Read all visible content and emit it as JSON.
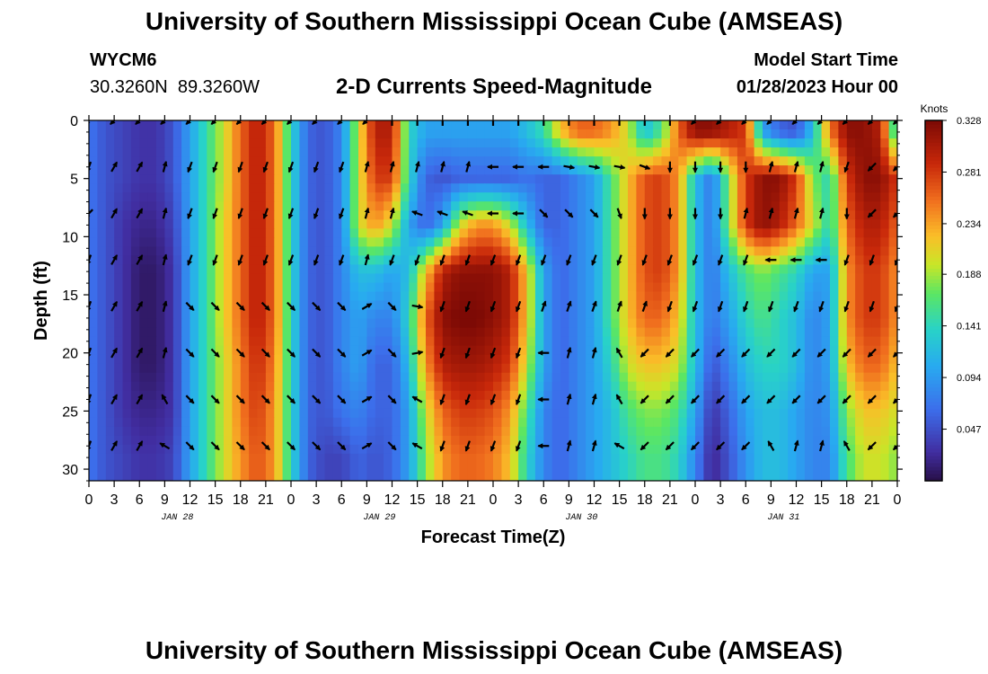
{
  "header": {
    "title": "University of Southern Mississippi Ocean Cube (AMSEAS)",
    "station": "WYCM6",
    "lat": "30.3260N",
    "lon": "89.3260W",
    "model_start_label": "Model Start Time",
    "model_start_value": "01/28/2023 Hour 00"
  },
  "footer": {
    "title": "University of Southern Mississippi Ocean Cube (AMSEAS)"
  },
  "chart_data": {
    "type": "heatmap",
    "title": "2-D Currents Speed-Magnitude",
    "xlabel": "Forecast Time(Z)",
    "ylabel": "Depth (ft)",
    "x_hours": [
      0,
      96
    ],
    "x_tick_step_hours": 3,
    "x_tick_labels": [
      "0",
      "3",
      "6",
      "9",
      "12",
      "15",
      "18",
      "21",
      "0",
      "3",
      "6",
      "9",
      "12",
      "15",
      "18",
      "21",
      "0",
      "3",
      "6",
      "9",
      "12",
      "15",
      "18",
      "21",
      "0",
      "3",
      "6",
      "9",
      "12",
      "15",
      "18",
      "21",
      "0"
    ],
    "date_labels": [
      {
        "hour": 10.5,
        "text": "JAN 28"
      },
      {
        "hour": 34.5,
        "text": "JAN 29"
      },
      {
        "hour": 58.5,
        "text": "JAN 30"
      },
      {
        "hour": 82.5,
        "text": "JAN 31"
      }
    ],
    "y_range_ft": [
      0,
      31
    ],
    "y_ticks": [
      0,
      5,
      10,
      15,
      20,
      25,
      30
    ],
    "colorbar": {
      "unit": "Knots",
      "min": 0.0,
      "max": 0.328,
      "tick_values": [
        0.047,
        0.094,
        0.141,
        0.188,
        0.234,
        0.281,
        0.328
      ],
      "tick_labels": [
        "0.047",
        "0.094",
        "0.141",
        "0.188",
        "0.234",
        "0.281",
        "0.328"
      ]
    },
    "speed_knots_by_layer": {
      "depths_ft": [
        1,
        5,
        9,
        13,
        17,
        21,
        25,
        29
      ],
      "hours": [
        0,
        2,
        4,
        6,
        8,
        10,
        12,
        14,
        16,
        18,
        20,
        22,
        24,
        26,
        28,
        30,
        32,
        34,
        36,
        38,
        40,
        42,
        44,
        46,
        48,
        50,
        52,
        54,
        56,
        58,
        60,
        62,
        64,
        66,
        68,
        70,
        72,
        74,
        76,
        78,
        80,
        82,
        84,
        86,
        88,
        90,
        92,
        94,
        96
      ],
      "values": [
        [
          0.07,
          0.05,
          0.04,
          0.03,
          0.03,
          0.05,
          0.1,
          0.15,
          0.2,
          0.26,
          0.3,
          0.26,
          0.14,
          0.06,
          0.05,
          0.08,
          0.2,
          0.3,
          0.3,
          0.14,
          0.1,
          0.1,
          0.1,
          0.1,
          0.1,
          0.1,
          0.12,
          0.15,
          0.22,
          0.26,
          0.26,
          0.24,
          0.2,
          0.12,
          0.16,
          0.26,
          0.32,
          0.32,
          0.3,
          0.28,
          0.1,
          0.06,
          0.05,
          0.12,
          0.25,
          0.32,
          0.32,
          0.3,
          0.12
        ],
        [
          0.07,
          0.05,
          0.04,
          0.03,
          0.03,
          0.05,
          0.1,
          0.15,
          0.2,
          0.26,
          0.3,
          0.26,
          0.14,
          0.06,
          0.05,
          0.08,
          0.2,
          0.28,
          0.28,
          0.14,
          0.06,
          0.05,
          0.06,
          0.06,
          0.06,
          0.06,
          0.07,
          0.06,
          0.06,
          0.08,
          0.1,
          0.16,
          0.22,
          0.27,
          0.28,
          0.24,
          0.12,
          0.07,
          0.18,
          0.28,
          0.32,
          0.32,
          0.28,
          0.18,
          0.14,
          0.28,
          0.32,
          0.32,
          0.28
        ],
        [
          0.07,
          0.05,
          0.03,
          0.02,
          0.02,
          0.04,
          0.1,
          0.15,
          0.21,
          0.26,
          0.3,
          0.26,
          0.14,
          0.06,
          0.05,
          0.08,
          0.2,
          0.24,
          0.2,
          0.1,
          0.06,
          0.1,
          0.2,
          0.24,
          0.24,
          0.2,
          0.12,
          0.06,
          0.06,
          0.08,
          0.1,
          0.16,
          0.22,
          0.27,
          0.28,
          0.24,
          0.12,
          0.07,
          0.18,
          0.28,
          0.32,
          0.3,
          0.26,
          0.2,
          0.14,
          0.26,
          0.3,
          0.3,
          0.26
        ],
        [
          0.07,
          0.05,
          0.03,
          0.01,
          0.01,
          0.03,
          0.1,
          0.15,
          0.21,
          0.26,
          0.3,
          0.26,
          0.14,
          0.06,
          0.05,
          0.08,
          0.12,
          0.12,
          0.1,
          0.12,
          0.22,
          0.3,
          0.32,
          0.32,
          0.32,
          0.3,
          0.22,
          0.1,
          0.06,
          0.08,
          0.1,
          0.16,
          0.22,
          0.27,
          0.28,
          0.24,
          0.12,
          0.07,
          0.12,
          0.16,
          0.18,
          0.16,
          0.14,
          0.1,
          0.1,
          0.24,
          0.28,
          0.28,
          0.24
        ],
        [
          0.07,
          0.05,
          0.03,
          0.01,
          0.01,
          0.03,
          0.1,
          0.15,
          0.21,
          0.26,
          0.3,
          0.26,
          0.14,
          0.06,
          0.05,
          0.08,
          0.1,
          0.08,
          0.08,
          0.14,
          0.26,
          0.32,
          0.33,
          0.33,
          0.32,
          0.3,
          0.22,
          0.1,
          0.06,
          0.08,
          0.1,
          0.16,
          0.22,
          0.26,
          0.26,
          0.22,
          0.12,
          0.07,
          0.1,
          0.14,
          0.16,
          0.14,
          0.12,
          0.08,
          0.1,
          0.24,
          0.28,
          0.28,
          0.24
        ],
        [
          0.07,
          0.05,
          0.03,
          0.01,
          0.01,
          0.03,
          0.1,
          0.15,
          0.2,
          0.25,
          0.29,
          0.25,
          0.14,
          0.06,
          0.05,
          0.08,
          0.1,
          0.06,
          0.06,
          0.12,
          0.24,
          0.3,
          0.31,
          0.31,
          0.3,
          0.28,
          0.2,
          0.1,
          0.06,
          0.08,
          0.1,
          0.14,
          0.2,
          0.22,
          0.22,
          0.2,
          0.12,
          0.05,
          0.08,
          0.12,
          0.14,
          0.14,
          0.12,
          0.08,
          0.1,
          0.22,
          0.26,
          0.26,
          0.22
        ],
        [
          0.07,
          0.05,
          0.03,
          0.02,
          0.02,
          0.03,
          0.1,
          0.15,
          0.2,
          0.25,
          0.28,
          0.24,
          0.14,
          0.06,
          0.05,
          0.07,
          0.08,
          0.06,
          0.06,
          0.1,
          0.2,
          0.26,
          0.28,
          0.28,
          0.27,
          0.24,
          0.16,
          0.08,
          0.06,
          0.08,
          0.1,
          0.12,
          0.16,
          0.18,
          0.18,
          0.16,
          0.1,
          0.03,
          0.06,
          0.1,
          0.12,
          0.12,
          0.1,
          0.08,
          0.09,
          0.18,
          0.22,
          0.22,
          0.2
        ],
        [
          0.07,
          0.05,
          0.04,
          0.03,
          0.03,
          0.04,
          0.1,
          0.15,
          0.2,
          0.24,
          0.27,
          0.24,
          0.14,
          0.06,
          0.04,
          0.04,
          0.06,
          0.05,
          0.06,
          0.1,
          0.18,
          0.24,
          0.26,
          0.26,
          0.25,
          0.22,
          0.14,
          0.08,
          0.06,
          0.08,
          0.1,
          0.12,
          0.14,
          0.16,
          0.16,
          0.14,
          0.08,
          0.02,
          0.05,
          0.09,
          0.12,
          0.12,
          0.1,
          0.08,
          0.08,
          0.16,
          0.2,
          0.2,
          0.18
        ]
      ]
    },
    "vector_hours": [
      0,
      3,
      6,
      9,
      12,
      15,
      18,
      21,
      24,
      27,
      30,
      33,
      36,
      39,
      42,
      45,
      48,
      51,
      54,
      57,
      60,
      63,
      66,
      69,
      72,
      75,
      78,
      81,
      84,
      87,
      90,
      93,
      96
    ],
    "vectors_by_depth": {
      "depths_ft": [
        0,
        4,
        8,
        12,
        16,
        20,
        24,
        28
      ],
      "direction_deg": [
        [
          225,
          225,
          225,
          225,
          225,
          225,
          225,
          225,
          225,
          225,
          225,
          225,
          0,
          0,
          0,
          0,
          0,
          0,
          0,
          0,
          0,
          0,
          0,
          0,
          225,
          225,
          225,
          225,
          225,
          225,
          225,
          225,
          225
        ],
        [
          200,
          30,
          30,
          15,
          200,
          200,
          200,
          200,
          200,
          200,
          200,
          15,
          15,
          15,
          15,
          15,
          270,
          270,
          270,
          100,
          100,
          100,
          110,
          180,
          180,
          180,
          180,
          15,
          15,
          15,
          200,
          225,
          225
        ],
        [
          225,
          30,
          30,
          15,
          200,
          200,
          200,
          200,
          200,
          200,
          200,
          15,
          15,
          290,
          290,
          290,
          270,
          270,
          135,
          135,
          135,
          160,
          180,
          180,
          180,
          180,
          15,
          15,
          15,
          15,
          180,
          225,
          225
        ],
        [
          200,
          30,
          30,
          15,
          200,
          200,
          200,
          200,
          200,
          200,
          200,
          15,
          200,
          200,
          200,
          200,
          200,
          200,
          200,
          200,
          200,
          200,
          200,
          200,
          200,
          200,
          200,
          270,
          270,
          270,
          200,
          200,
          200
        ],
        [
          200,
          30,
          30,
          15,
          135,
          135,
          135,
          135,
          135,
          135,
          135,
          60,
          135,
          100,
          200,
          200,
          200,
          200,
          20,
          20,
          20,
          20,
          20,
          200,
          200,
          200,
          200,
          200,
          200,
          200,
          200,
          200,
          200
        ],
        [
          200,
          30,
          30,
          15,
          135,
          135,
          135,
          135,
          135,
          135,
          135,
          60,
          135,
          80,
          200,
          200,
          200,
          200,
          270,
          15,
          15,
          330,
          225,
          225,
          225,
          225,
          225,
          225,
          225,
          225,
          225,
          225,
          225
        ],
        [
          200,
          30,
          30,
          330,
          135,
          135,
          135,
          135,
          135,
          135,
          135,
          60,
          135,
          300,
          200,
          200,
          200,
          200,
          270,
          15,
          15,
          330,
          225,
          225,
          225,
          225,
          225,
          225,
          225,
          225,
          225,
          225,
          225
        ],
        [
          200,
          30,
          30,
          300,
          135,
          135,
          135,
          135,
          135,
          135,
          135,
          60,
          135,
          300,
          200,
          200,
          200,
          200,
          270,
          15,
          15,
          300,
          225,
          225,
          225,
          225,
          225,
          330,
          15,
          15,
          330,
          225,
          225
        ]
      ]
    }
  }
}
